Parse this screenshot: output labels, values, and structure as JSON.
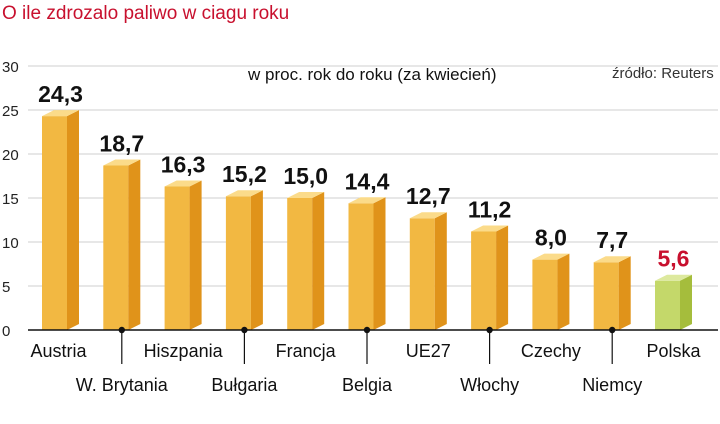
{
  "chart_data": {
    "type": "bar",
    "title": "O ile zdrozalo paliwo w ciagu roku",
    "subtitle": "w proc. rok do roku (za kwiecień)",
    "source": "źródło: Reuters",
    "categories": [
      "Austria",
      "W. Brytania",
      "Hiszpania",
      "Bułgaria",
      "Francja",
      "Belgia",
      "UE27",
      "Włochy",
      "Czechy",
      "Niemcy",
      "Polska"
    ],
    "values": [
      24.3,
      18.7,
      16.3,
      15.2,
      15.0,
      14.4,
      12.7,
      11.2,
      8.0,
      7.7,
      5.6
    ],
    "value_labels": [
      "24,3",
      "18,7",
      "16,3",
      "15,2",
      "15,0",
      "14,4",
      "12,7",
      "11,2",
      "8,0",
      "7,7",
      "5,6"
    ],
    "highlight_category": "Polska",
    "yticks": [
      "0",
      "5",
      "10",
      "15",
      "20",
      "25",
      "30"
    ],
    "ylim": [
      0,
      30
    ],
    "grid": true,
    "colors": {
      "title": "#c8102e",
      "bar_front": "#f2b842",
      "bar_side": "#e0931a",
      "bar_top": "#fbdb8a",
      "highlight_front": "#c4d86a",
      "highlight_side": "#a5bd3c",
      "highlight_top": "#dde99e",
      "highlight_label": "#c8102e",
      "label": "#111111",
      "grid": "#cfcfcf"
    }
  }
}
